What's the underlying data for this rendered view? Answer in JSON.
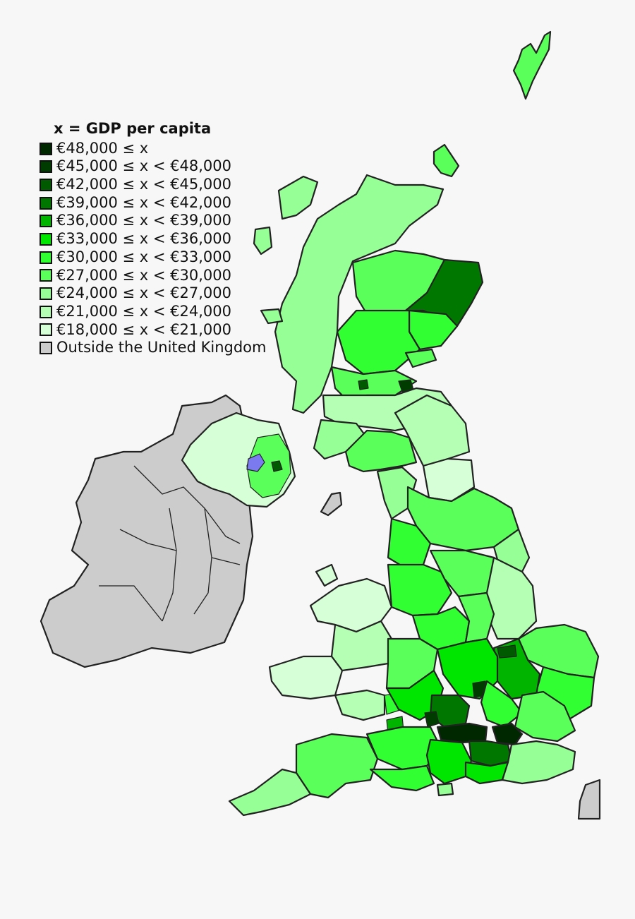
{
  "legend": {
    "title": "x = GDP per capita",
    "items": [
      {
        "label": "€48,000 ≤ x",
        "color": "#002800"
      },
      {
        "label": "€45,000 ≤ x < €48,000",
        "color": "#003c00"
      },
      {
        "label": "€42,000 ≤ x < €45,000",
        "color": "#005a00"
      },
      {
        "label": "€39,000 ≤ x < €42,000",
        "color": "#007800"
      },
      {
        "label": "€36,000 ≤ x < €39,000",
        "color": "#00b400"
      },
      {
        "label": "€33,000 ≤ x < €36,000",
        "color": "#00e600"
      },
      {
        "label": "€30,000 ≤ x < €33,000",
        "color": "#32ff32"
      },
      {
        "label": "€27,000 ≤ x < €30,000",
        "color": "#5aff5a"
      },
      {
        "label": "€24,000 ≤ x < €27,000",
        "color": "#96ff96"
      },
      {
        "label": "€21,000 ≤ x < €24,000",
        "color": "#b4ffb4"
      },
      {
        "label": "€18,000 ≤ x < €21,000",
        "color": "#d7ffd7"
      },
      {
        "label": "Outside the United Kingdom",
        "color": "#cccccc"
      }
    ]
  },
  "colors": {
    "background": "#f7f7f7",
    "outside_uk": "#cccccc",
    "border": "#222222",
    "highlight_blue": "#7b7bef"
  }
}
